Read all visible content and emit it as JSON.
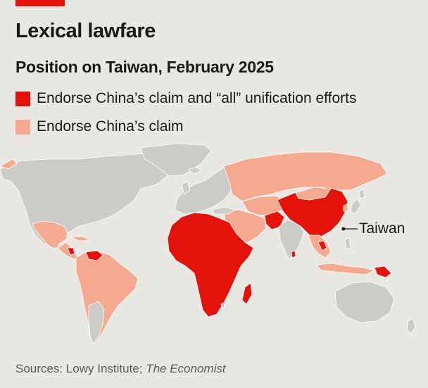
{
  "title": "Lexical lawfare",
  "subtitle": "Position on Taiwan, February 2025",
  "legend": [
    {
      "label": "Endorse China’s claim and “all” unification efforts",
      "color": "#e3120b"
    },
    {
      "label": "Endorse China’s claim",
      "color": "#f6a991"
    }
  ],
  "colors": {
    "background": "#e9e7e2",
    "land_other": "#cbcbc8",
    "border": "#ffffff"
  },
  "annotation": {
    "label": "Taiwan"
  },
  "source": {
    "prefix": "Sources: Lowy Institute; ",
    "italic": "The Economist"
  }
}
